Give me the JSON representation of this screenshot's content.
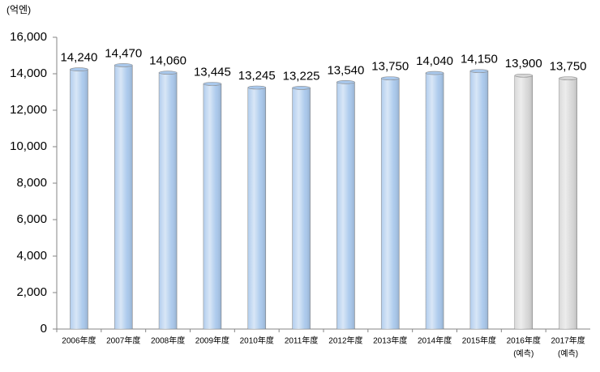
{
  "chart_data": {
    "type": "bar",
    "unit_label": "(억엔)",
    "categories": [
      "2006年度",
      "2007年度",
      "2008年度",
      "2009年度",
      "2010年度",
      "2011年度",
      "2012年度",
      "2013年度",
      "2014年度",
      "2015年度",
      "2016年度",
      "2017年度"
    ],
    "category_notes": [
      null,
      null,
      null,
      null,
      null,
      null,
      null,
      null,
      null,
      null,
      "(예측)",
      "(예측)"
    ],
    "values": [
      14240,
      14470,
      14060,
      13445,
      13245,
      13225,
      13540,
      13750,
      14040,
      14150,
      13900,
      13750
    ],
    "value_labels": [
      "14,240",
      "14,470",
      "14,060",
      "13,445",
      "13,245",
      "13,225",
      "13,540",
      "13,750",
      "14,040",
      "14,150",
      "13,900",
      "13,750"
    ],
    "colors": [
      "#a9c8ec",
      "#a9c8ec",
      "#a9c8ec",
      "#a9c8ec",
      "#a9c8ec",
      "#a9c8ec",
      "#a9c8ec",
      "#a9c8ec",
      "#a9c8ec",
      "#a9c8ec",
      "#d6d6d6",
      "#d6d6d6"
    ],
    "ylim": [
      0,
      16000
    ],
    "yticks": [
      0,
      {
        "value": 2000,
        "label": "2,000"
      },
      {
        "value": 4000,
        "label": "4,000"
      },
      {
        "value": 6000,
        "label": "6,000"
      },
      {
        "value": 8000,
        "label": "8,000"
      },
      {
        "value": 10000,
        "label": "10,000"
      },
      {
        "value": 12000,
        "label": "12,000"
      },
      {
        "value": 14000,
        "label": "14,000"
      },
      {
        "value": 16000,
        "label": "16,000"
      }
    ],
    "grid": false
  }
}
